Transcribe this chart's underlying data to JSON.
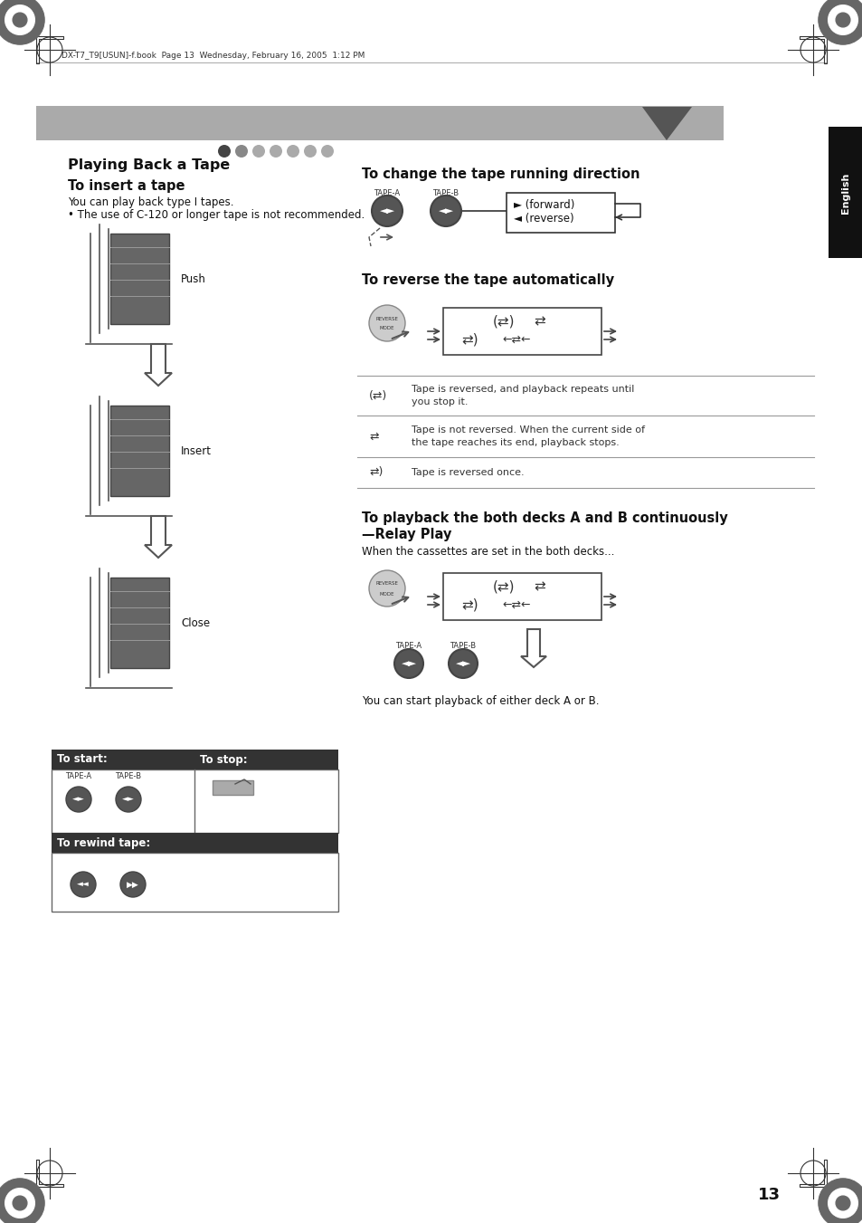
{
  "page_bg": "#ffffff",
  "header_text": "DX-T7_T9[USUN]-f.book  Page 13  Wednesday, February 16, 2005  1:12 PM",
  "english_tab_text": "English",
  "page_number": "13",
  "insert_tape_text1": "You can play back type I tapes.",
  "insert_tape_text2": "• The use of C-120 or longer tape is not recommended.",
  "push_label": "Push",
  "insert_label": "Insert",
  "close_label": "Close",
  "forward_text": "► (forward)",
  "reverse_text": "◄ (reverse)",
  "row1_text": "Tape is reversed, and playback repeats until\nyou stop it.",
  "row2_text": "Tape is not reversed. When the current side of\nthe tape reaches its end, playback stops.",
  "row3_text": "Tape is reversed once.",
  "relay_text": "When the cassettes are set in the both decks...",
  "relay_end": "You can start playback of either deck A or B.",
  "dot_colors": [
    "#444444",
    "#888888",
    "#aaaaaa",
    "#aaaaaa",
    "#aaaaaa",
    "#aaaaaa",
    "#aaaaaa"
  ],
  "banner_color": "#999999",
  "triangle_color": "#555555",
  "dark_color": "#222222",
  "tab_color": "#111111",
  "btn_dark": "#444444",
  "btn_light": "#cccccc",
  "table_header_color": "#333333",
  "line_color": "#888888",
  "gray_mid": "#888888"
}
